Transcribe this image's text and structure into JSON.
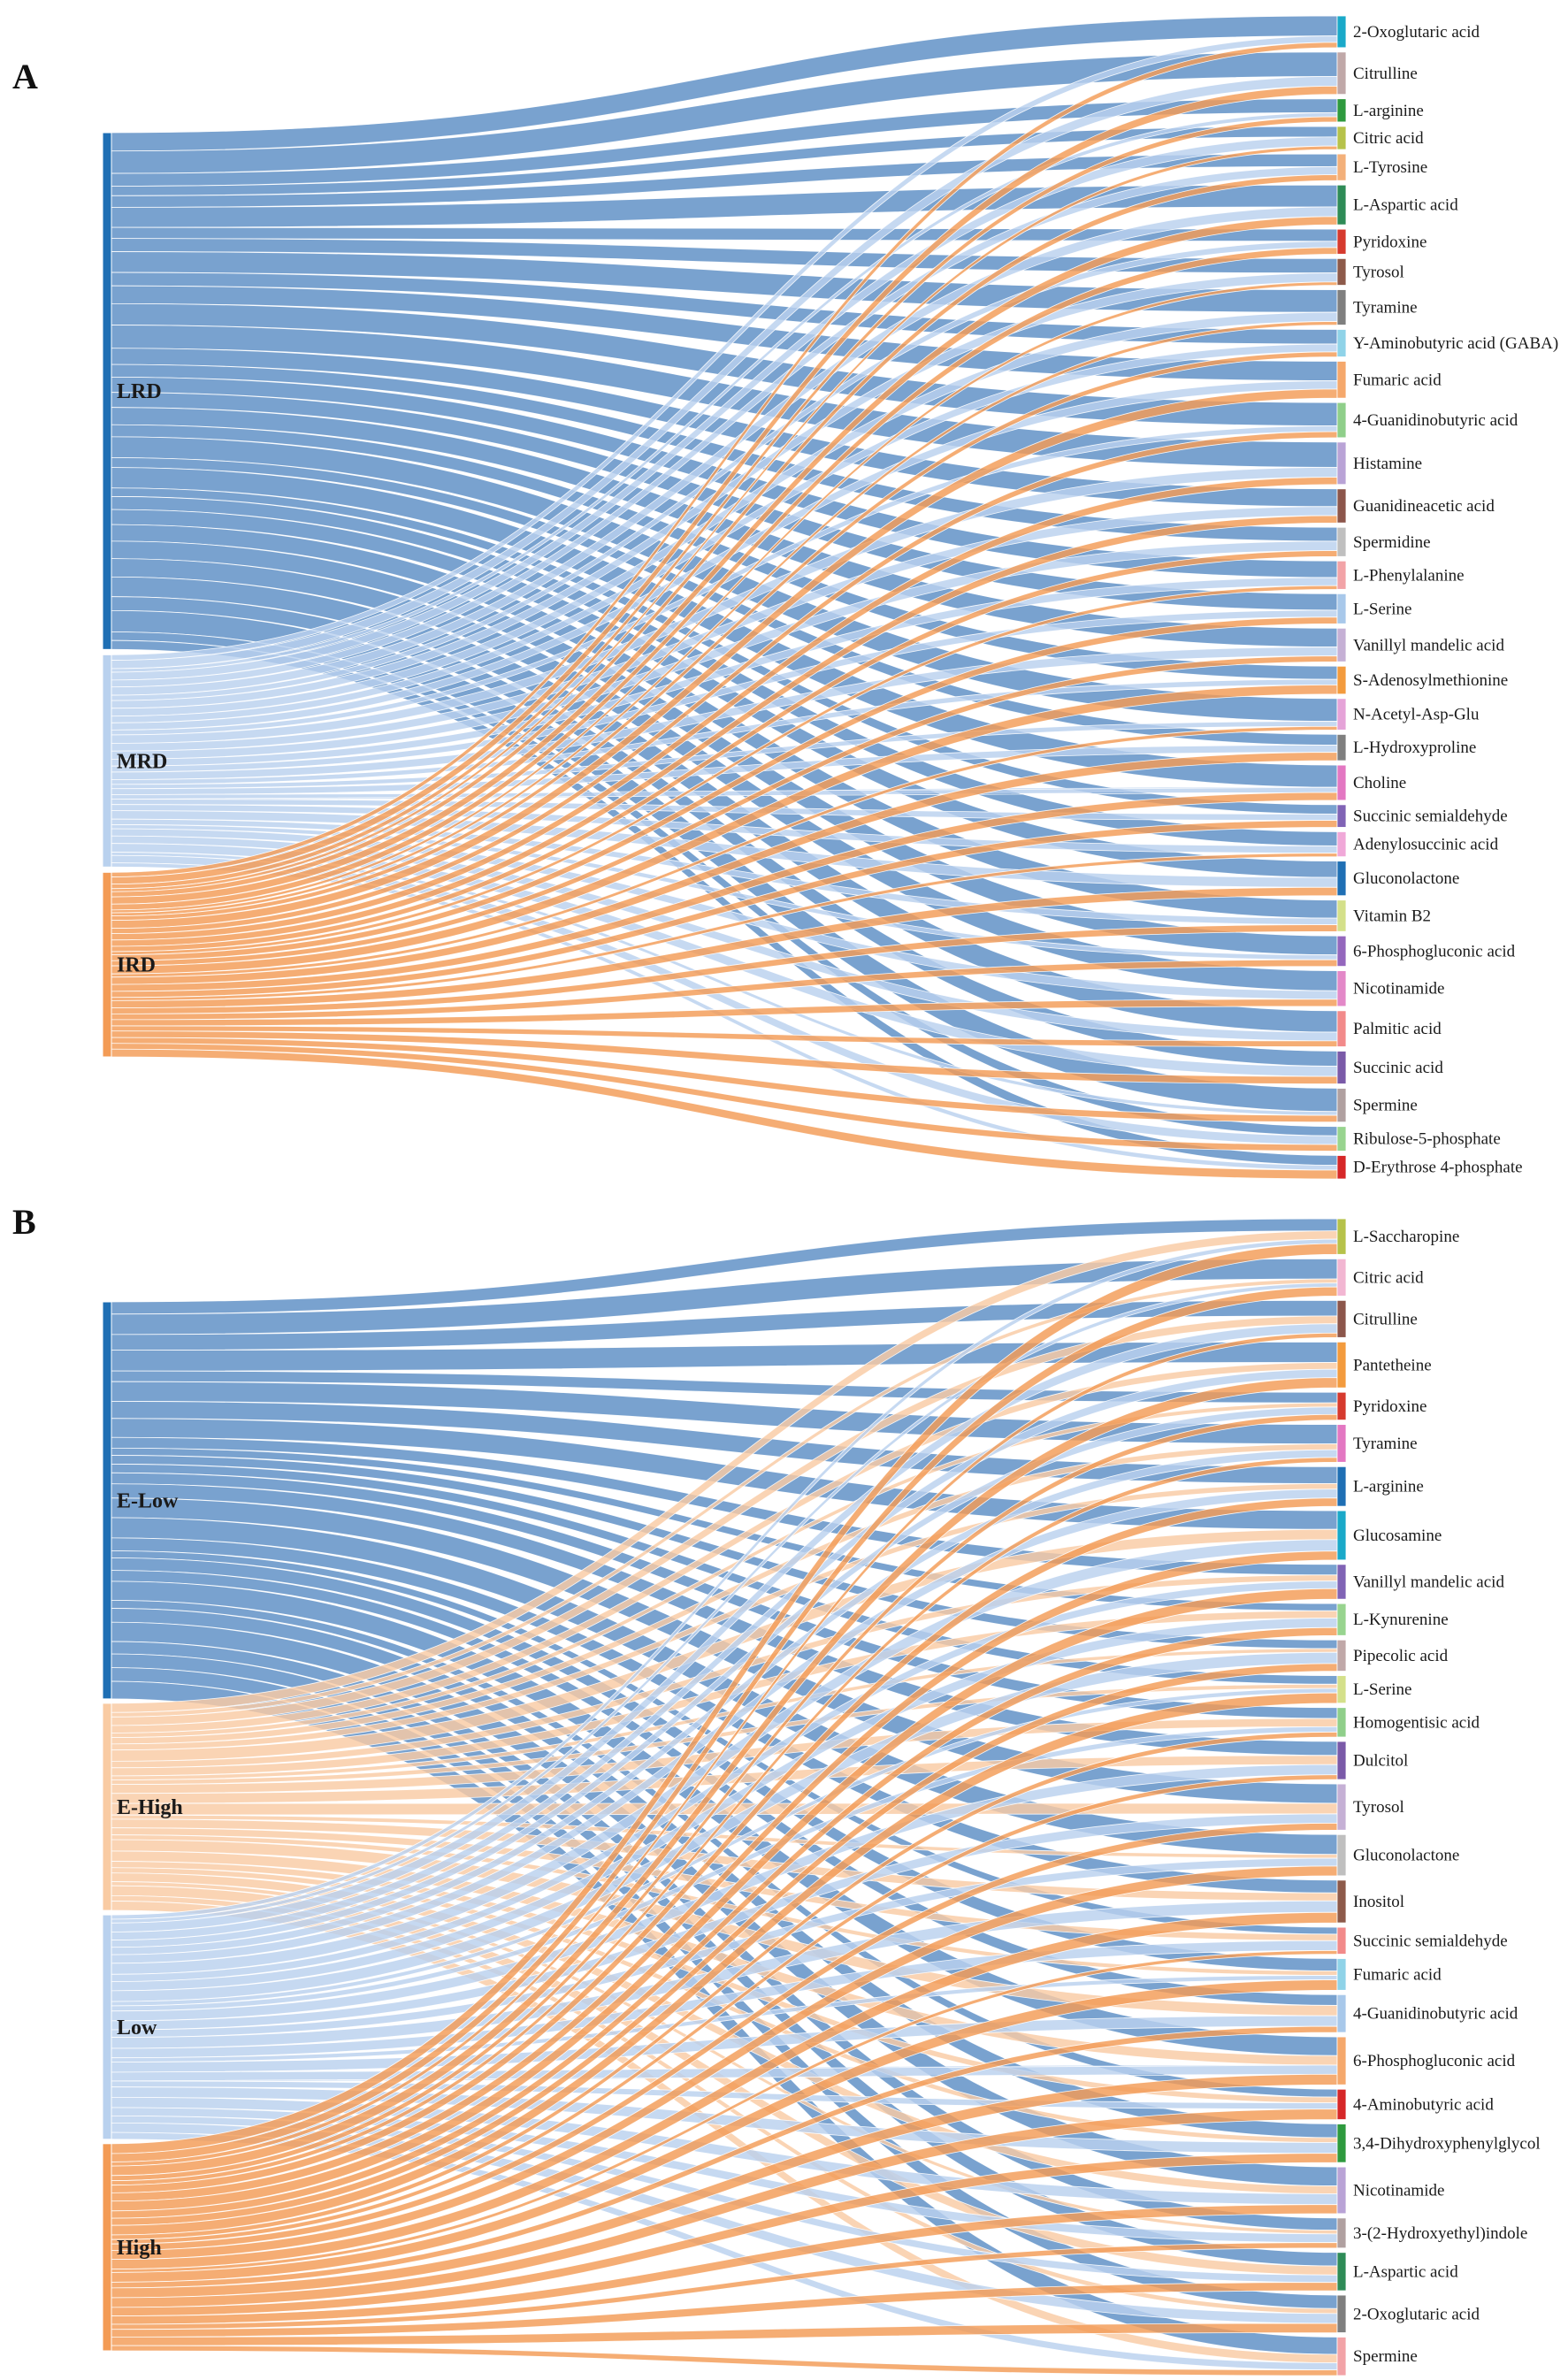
{
  "chart_data": [
    {
      "type": "sankey",
      "panel": "A",
      "sources": [
        {
          "name": "LRD",
          "color": "#5b8dc4",
          "weight": 5.6
        },
        {
          "name": "MRD",
          "color": "#b9d1ee",
          "weight": 2.3
        },
        {
          "name": "IRD",
          "color": "#f39b55",
          "weight": 2.0
        }
      ],
      "targets": [
        {
          "name": "2-Oxoglutaric acid",
          "color": "#1aa9c9"
        },
        {
          "name": "Citrulline",
          "color": "#c0a8a8"
        },
        {
          "name": "L-arginine",
          "color": "#2e9a3e"
        },
        {
          "name": "Citric acid",
          "color": "#b6c24a"
        },
        {
          "name": "L-Tyrosine",
          "color": "#f3b07a"
        },
        {
          "name": "L-Aspartic acid",
          "color": "#2e8b57"
        },
        {
          "name": "Pyridoxine",
          "color": "#d63a2e"
        },
        {
          "name": "Tyrosol",
          "color": "#8d5a4a"
        },
        {
          "name": "Tyramine",
          "color": "#7f7f7f"
        },
        {
          "name": "Y-Aminobutyric acid (GABA)",
          "color": "#8fd3e8"
        },
        {
          "name": "Fumaric acid",
          "color": "#f5a86c"
        },
        {
          "name": "4-Guanidinobutyric acid",
          "color": "#8fcf8a"
        },
        {
          "name": "Histamine",
          "color": "#b9a3d6"
        },
        {
          "name": "Guanidineacetic acid",
          "color": "#8c564b"
        },
        {
          "name": "Spermidine",
          "color": "#bfbfbf"
        },
        {
          "name": "L-Phenylalanine",
          "color": "#f2a3a7"
        },
        {
          "name": "L-Serine",
          "color": "#a8c8ea"
        },
        {
          "name": "Vanillyl mandelic acid",
          "color": "#c5b0d5"
        },
        {
          "name": "S-Adenosylmethionine",
          "color": "#f39b3d"
        },
        {
          "name": "N-Acetyl-Asp-Glu",
          "color": "#e5a3d8"
        },
        {
          "name": "L-Hydroxyproline",
          "color": "#7f7f7f"
        },
        {
          "name": "Choline",
          "color": "#e377c2"
        },
        {
          "name": "Succinic semialdehyde",
          "color": "#8063b5"
        },
        {
          "name": "Adenylosuccinic acid",
          "color": "#f0a8d8"
        },
        {
          "name": "Gluconolactone",
          "color": "#1f6fb4"
        },
        {
          "name": "Vitamin B2",
          "color": "#d4e08a"
        },
        {
          "name": "6-Phosphogluconic acid",
          "color": "#9467bd"
        },
        {
          "name": "Nicotinamide",
          "color": "#e388c8"
        },
        {
          "name": "Palmitic acid",
          "color": "#f28a8a"
        },
        {
          "name": "Succinic acid",
          "color": "#7a5aa8"
        },
        {
          "name": "Spermine",
          "color": "#b0a0a0"
        },
        {
          "name": "Ribulose-5-phosphate",
          "color": "#98d48f"
        },
        {
          "name": "D-Erythrose 4-phosphate",
          "color": "#d62728"
        }
      ]
    },
    {
      "type": "sankey",
      "panel": "B",
      "sources": [
        {
          "name": "E-Low",
          "color": "#5b8dc4",
          "weight": 4.6
        },
        {
          "name": "E-High",
          "color": "#f9cba3",
          "weight": 2.4
        },
        {
          "name": "Low",
          "color": "#b9d1ee",
          "weight": 2.6
        },
        {
          "name": "High",
          "color": "#f39b55",
          "weight": 2.4
        }
      ],
      "targets": [
        {
          "name": "L-Saccharopine",
          "color": "#b6c24a"
        },
        {
          "name": "Citric acid",
          "color": "#f2b6d2"
        },
        {
          "name": "Citrulline",
          "color": "#8c564b"
        },
        {
          "name": "Pantetheine",
          "color": "#f39b3d"
        },
        {
          "name": "Pyridoxine",
          "color": "#d63a2e"
        },
        {
          "name": "Tyramine",
          "color": "#e377c2"
        },
        {
          "name": "L-arginine",
          "color": "#1f6fb4"
        },
        {
          "name": "Glucosamine",
          "color": "#1aa9c9"
        },
        {
          "name": "Vanillyl mandelic acid",
          "color": "#8063b5"
        },
        {
          "name": "L-Kynurenine",
          "color": "#98d48f"
        },
        {
          "name": "Pipecolic acid",
          "color": "#c0a8a8"
        },
        {
          "name": "L-Serine",
          "color": "#d4e08a"
        },
        {
          "name": "Homogentisic acid",
          "color": "#8fcf8a"
        },
        {
          "name": "Dulcitol",
          "color": "#7a5aa8"
        },
        {
          "name": "Tyrosol",
          "color": "#c5b0d5"
        },
        {
          "name": "Gluconolactone",
          "color": "#bfbfbf"
        },
        {
          "name": "Inositol",
          "color": "#8d5a4a"
        },
        {
          "name": "Succinic semialdehyde",
          "color": "#f28a8a"
        },
        {
          "name": "Fumaric acid",
          "color": "#8fd3e8"
        },
        {
          "name": "4-Guanidinobutyric acid",
          "color": "#a8c8ea"
        },
        {
          "name": "6-Phosphogluconic acid",
          "color": "#f5a86c"
        },
        {
          "name": "4-Aminobutyric acid",
          "color": "#d62728"
        },
        {
          "name": "3,4-Dihydroxyphenylglycol",
          "color": "#2e9a3e"
        },
        {
          "name": "Nicotinamide",
          "color": "#b9a3d6"
        },
        {
          "name": "3-(2-Hydroxyethyl)indole",
          "color": "#b0a0a0"
        },
        {
          "name": "L-Aspartic acid",
          "color": "#2e8b57"
        },
        {
          "name": "2-Oxoglutaric acid",
          "color": "#7f7f7f"
        },
        {
          "name": "Spermine",
          "color": "#f2a3a7"
        }
      ]
    }
  ]
}
